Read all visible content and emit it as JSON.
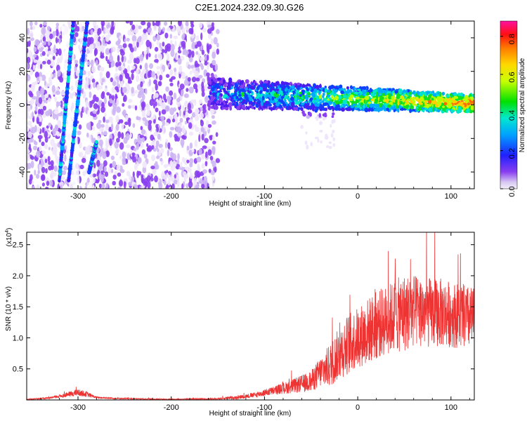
{
  "title": "C2E1.2024.232.09.30.G26",
  "chart_data": [
    {
      "type": "heatmap",
      "name": "spectrogram",
      "xlabel": "Height of straight line (km)",
      "ylabel": "Frequency (Hz)",
      "xlim": [
        -355,
        125
      ],
      "ylim": [
        -50,
        50
      ],
      "xticks": [
        -300,
        -200,
        -100,
        0,
        100
      ],
      "yticks": [
        -40,
        -20,
        0,
        20,
        40
      ],
      "colorbar": {
        "label": "Normalized spectral amplitude",
        "range": [
          0.0,
          0.88
        ],
        "ticks": [
          "0.0",
          "0.2",
          "0.4",
          "0.6",
          "0.8"
        ],
        "tick_values": [
          0.0,
          0.2,
          0.4,
          0.6,
          0.8
        ],
        "colormap": "rainbow"
      },
      "regions": [
        {
          "label": "broadband noise",
          "x_from": -355,
          "x_to": -150,
          "y_from": -50,
          "y_to": 50,
          "amplitude": 0.05
        },
        {
          "label": "signal band",
          "x_from": -160,
          "x_to": 125,
          "freq_center_hz": 2,
          "amplitude_max": 0.85
        },
        {
          "label": "slanted streak 1",
          "x_from": -320,
          "x_to": -305,
          "y_from": -45,
          "y_to": 50,
          "amplitude": 0.3
        },
        {
          "label": "slanted streak 2",
          "x_from": -310,
          "x_to": -290,
          "y_from": -45,
          "y_to": 50,
          "amplitude": 0.3
        },
        {
          "label": "slanted streak 3",
          "x_from": -288,
          "x_to": -280,
          "y_from": -40,
          "y_to": -22,
          "amplitude": 0.3
        }
      ]
    },
    {
      "type": "line",
      "name": "snr",
      "xlabel": "Height of straight line (km)",
      "ylabel": "SNR (10 * v/v)",
      "yscale_label": "(x10",
      "yscale_exp": "4",
      "yscale_close": ")",
      "xlim": [
        -355,
        125
      ],
      "ylim": [
        0,
        2.7
      ],
      "xticks": [
        -300,
        -200,
        -100,
        0,
        100
      ],
      "yticks": [
        "0.5",
        "1.0",
        "1.5",
        "2.0",
        "2.5"
      ],
      "ytick_values": [
        0.5,
        1.0,
        1.5,
        2.0,
        2.5
      ],
      "color": "#ee3333",
      "x": [
        -355,
        -330,
        -310,
        -300,
        -290,
        -280,
        -250,
        -200,
        -150,
        -130,
        -110,
        -90,
        -70,
        -50,
        -40,
        -30,
        -20,
        -10,
        0,
        10,
        20,
        30,
        40,
        50,
        60,
        70,
        80,
        90,
        100,
        110,
        125
      ],
      "y": [
        0.01,
        0.03,
        0.09,
        0.12,
        0.09,
        0.04,
        0.02,
        0.01,
        0.02,
        0.04,
        0.08,
        0.15,
        0.22,
        0.3,
        0.45,
        0.55,
        0.75,
        0.9,
        1.0,
        1.1,
        1.2,
        1.28,
        1.35,
        1.4,
        1.42,
        1.42,
        1.4,
        1.4,
        1.38,
        1.35,
        1.3
      ],
      "noise_spread": [
        0.005,
        0.01,
        0.03,
        0.04,
        0.03,
        0.01,
        0.008,
        0.005,
        0.01,
        0.02,
        0.03,
        0.05,
        0.08,
        0.12,
        0.18,
        0.25,
        0.3,
        0.35,
        0.35,
        0.38,
        0.4,
        0.4,
        0.42,
        0.45,
        0.42,
        0.42,
        0.4,
        0.4,
        0.38,
        0.38,
        0.36
      ]
    }
  ]
}
